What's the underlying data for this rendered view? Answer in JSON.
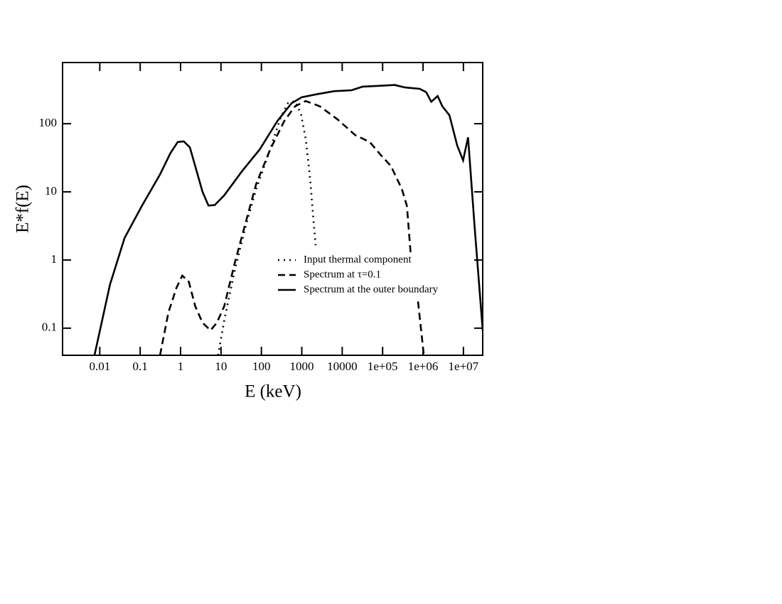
{
  "chart_data": {
    "type": "line",
    "xlabel": "E (keV)",
    "ylabel": "E*f(E)",
    "xscale": "log",
    "yscale": "log",
    "xlim": [
      0.0012,
      30000000
    ],
    "ylim": [
      0.04,
      790
    ],
    "xticks": [
      0.01,
      0.1,
      1,
      10,
      100,
      1000,
      10000,
      {
        "value": 100000,
        "label": "1e+05"
      },
      {
        "value": 1000000,
        "label": "1e+06"
      },
      {
        "value": 10000000,
        "label": "1e+07"
      }
    ],
    "yticks": [
      0.1,
      1,
      10,
      100
    ],
    "legend": "lower right",
    "series": [
      {
        "name": "Input thermal component",
        "color": "#000000",
        "dash": "dotted",
        "x": [
          8.5,
          12,
          22,
          40,
          74,
          165,
          300,
          455,
          680,
          950,
          1250,
          1600,
          1950,
          2200
        ],
        "values": [
          0.04,
          0.13,
          0.71,
          3,
          11,
          42,
          124,
          200,
          215,
          140,
          60,
          16,
          3.8,
          1.65
        ]
      },
      {
        "name": "Spectrum at τ=0.1",
        "color": "#000000",
        "dash": "dashed",
        "x": [
          0.31,
          0.5,
          0.79,
          1.1,
          1.6,
          2.3,
          3.5,
          5.5,
          7.9,
          12,
          22,
          40,
          74,
          165,
          370,
          680,
          1250,
          2800,
          7800,
          21000,
          48000,
          89000,
          160000,
          300000,
          400000,
          500000,
          740000,
          1050000
        ],
        "values": [
          0.04,
          0.17,
          0.39,
          0.59,
          0.48,
          0.21,
          0.12,
          0.093,
          0.12,
          0.21,
          0.91,
          3.4,
          13,
          42,
          110,
          180,
          215,
          180,
          115,
          68,
          54,
          35,
          24,
          11,
          6.2,
          1.15,
          0.27,
          0.04
        ]
      },
      {
        "name": "Spectrum at the outer boundary",
        "color": "#000000",
        "dash": "solid",
        "x": [
          0.0074,
          0.018,
          0.041,
          0.11,
          0.31,
          0.56,
          0.85,
          1.2,
          1.7,
          3.5,
          4.9,
          7,
          12,
          33,
          91,
          250,
          560,
          1000,
          2300,
          6300,
          17000,
          32000,
          89000,
          200000,
          360000,
          830000,
          1200000,
          1600000,
          2300000,
          3000000,
          4500000,
          7000000,
          9800000,
          13000000,
          19000000,
          30000000
        ],
        "values": [
          0.04,
          0.44,
          2.1,
          6.2,
          18,
          37,
          54,
          55,
          45,
          10,
          6.3,
          6.4,
          8.9,
          20,
          42,
          110,
          200,
          245,
          270,
          300,
          310,
          350,
          360,
          370,
          340,
          325,
          290,
          210,
          255,
          180,
          133,
          48,
          29,
          63,
          3,
          0.093
        ]
      }
    ]
  }
}
